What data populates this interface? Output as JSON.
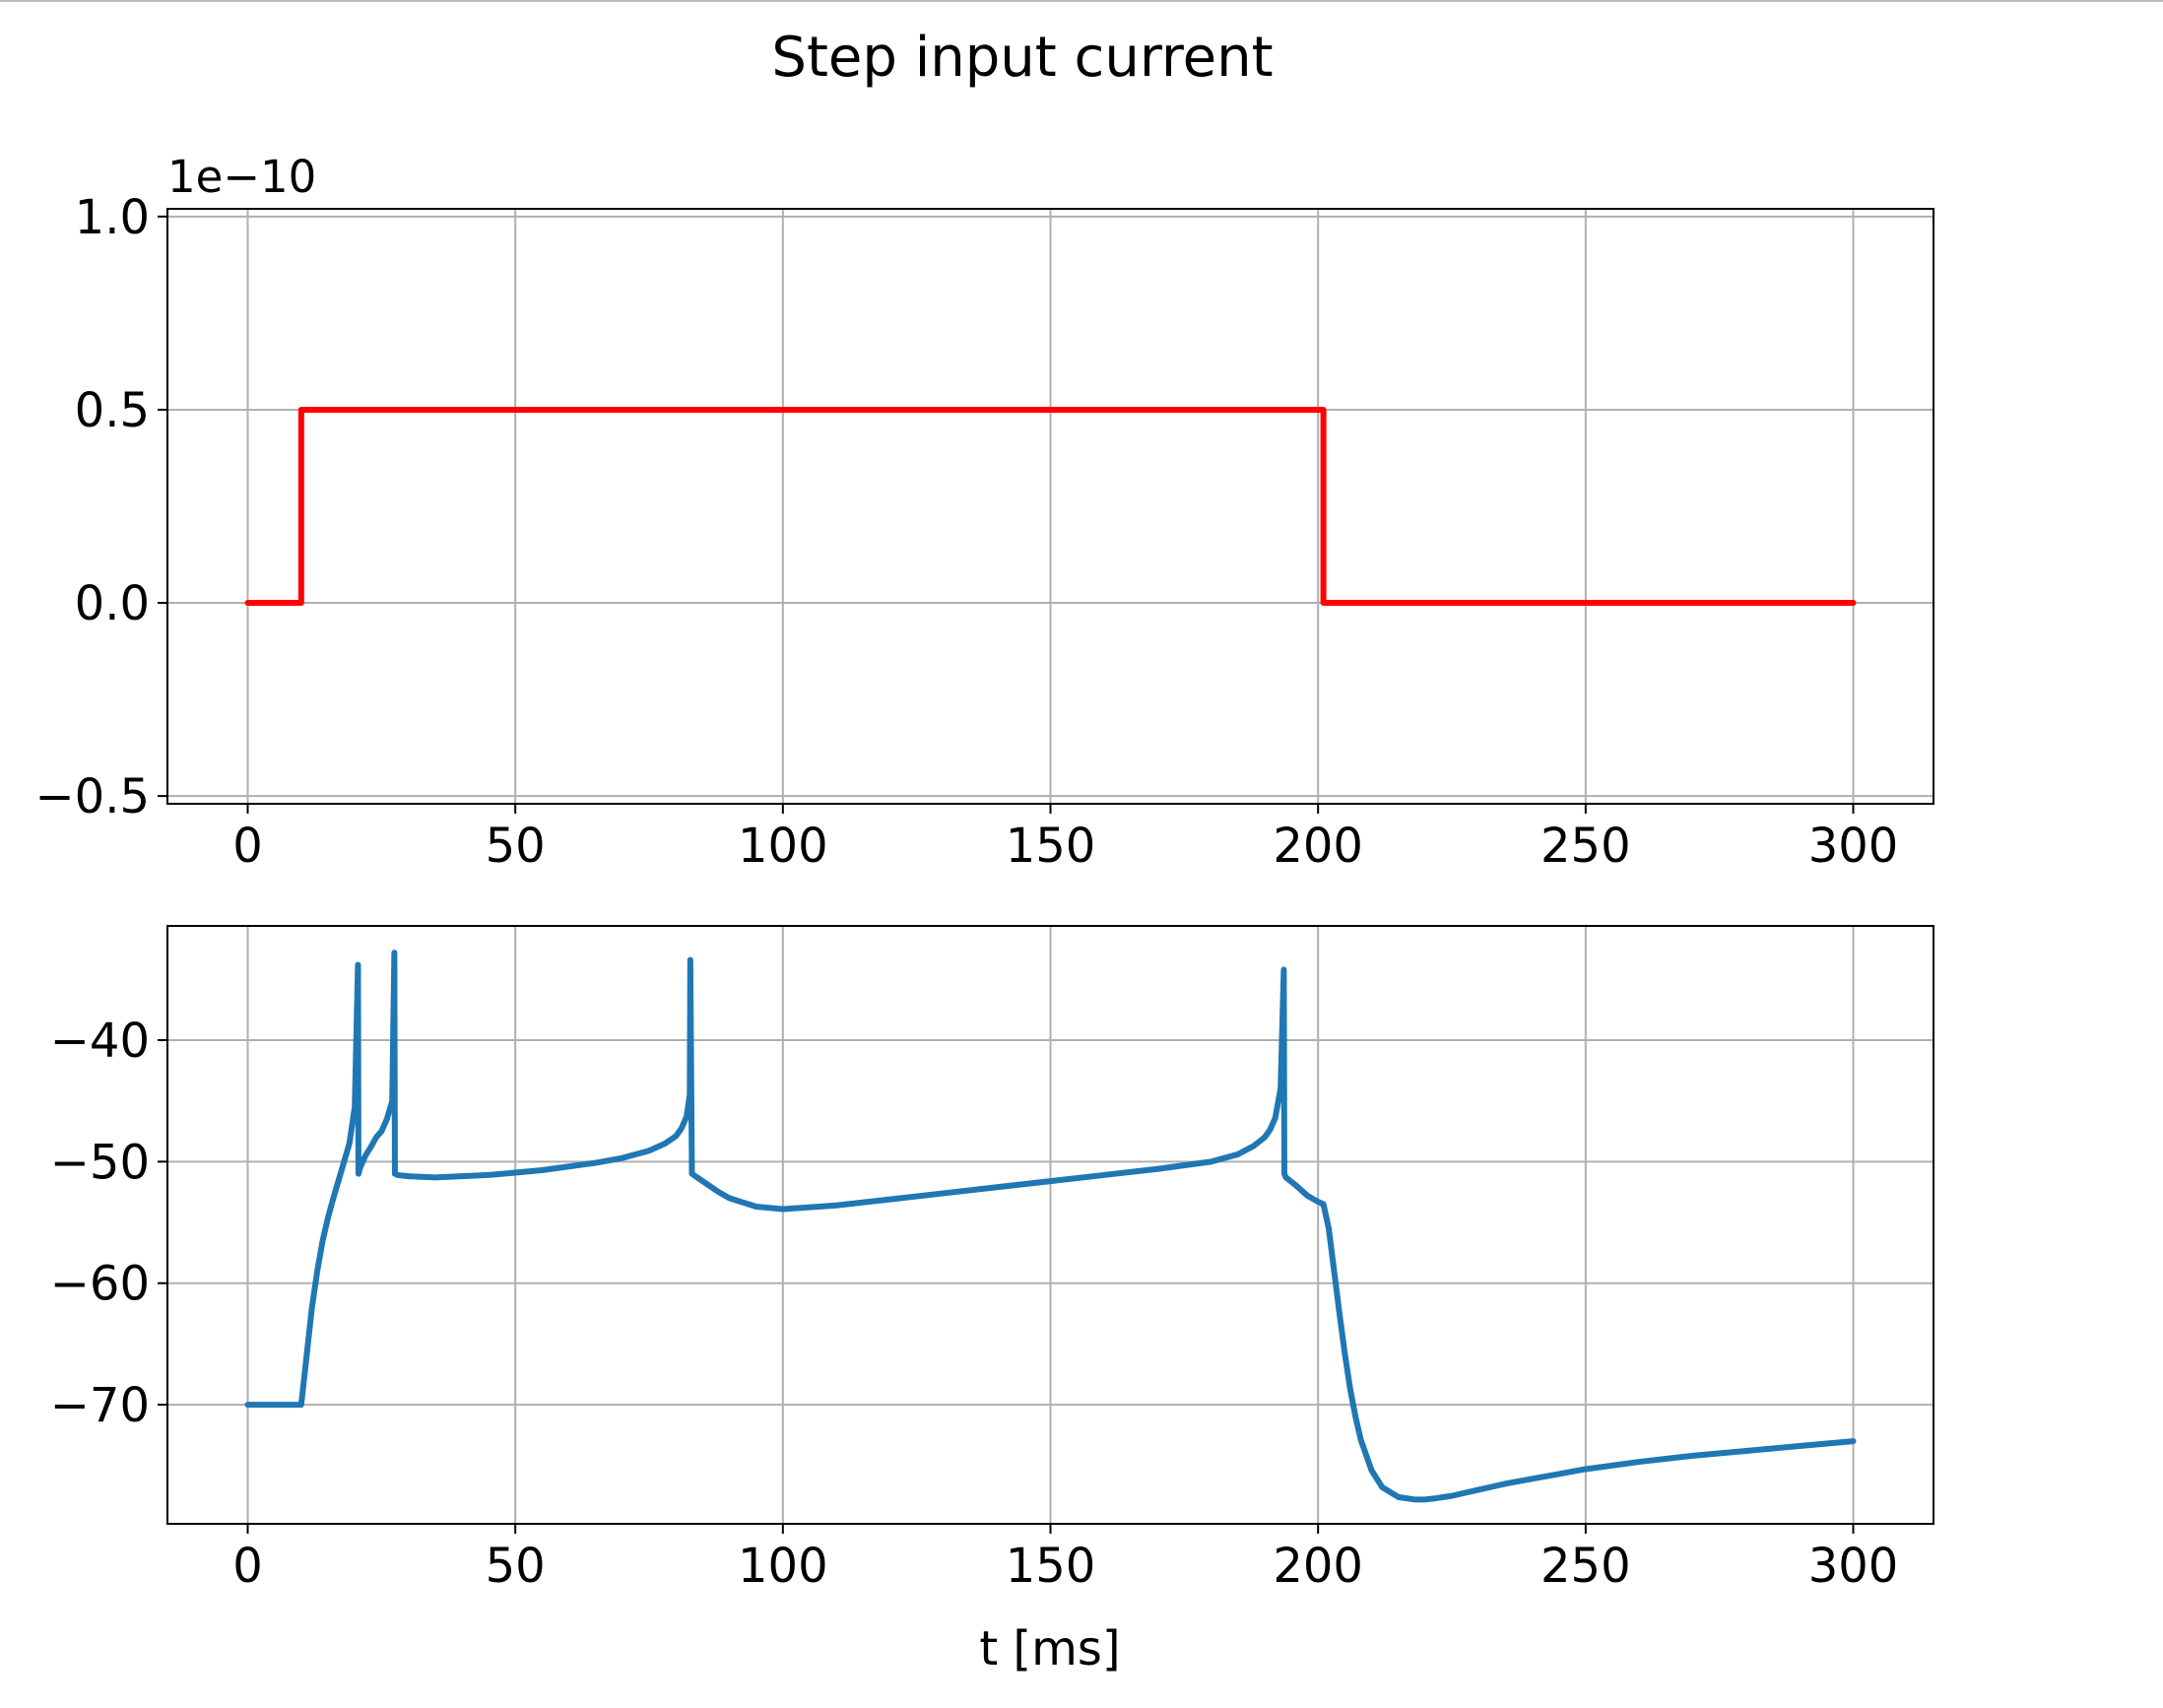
{
  "figure": {
    "title": "Step input current"
  },
  "colors": {
    "current": "#ff0000",
    "voltage": "#1f77b4",
    "grid": "#b0b0b0",
    "axes": "#000000",
    "background": "#ffffff"
  },
  "chart_data": [
    {
      "type": "line",
      "title": "Step input current",
      "xlabel": "",
      "ylabel": "",
      "offset_text": "1e−10",
      "xlim": [
        -15,
        315
      ],
      "ylim": [
        -0.52,
        1.02
      ],
      "x_ticks": [
        0,
        50,
        100,
        150,
        200,
        250,
        300
      ],
      "x_tick_labels": [
        "0",
        "50",
        "100",
        "150",
        "200",
        "250",
        "300"
      ],
      "y_ticks": [
        -0.5,
        0.0,
        0.5,
        1.0
      ],
      "y_tick_labels": [
        "−0.5",
        "0.0",
        "0.5",
        "1.0"
      ],
      "grid": true,
      "series": [
        {
          "color": "#ff0000",
          "x": [
            0,
            10,
            10,
            201,
            201,
            300
          ],
          "y": [
            0,
            0,
            0.5,
            0.5,
            0,
            0
          ]
        }
      ]
    },
    {
      "type": "line",
      "xlabel": "t [ms]",
      "ylabel": "",
      "xlim": [
        -15,
        315
      ],
      "ylim": [
        -79.8,
        -30.6
      ],
      "x_ticks": [
        0,
        50,
        100,
        150,
        200,
        250,
        300
      ],
      "x_tick_labels": [
        "0",
        "50",
        "100",
        "150",
        "200",
        "250",
        "300"
      ],
      "y_ticks": [
        -70,
        -60,
        -50,
        -40
      ],
      "y_tick_labels": [
        "−70",
        "−60",
        "−50",
        "−40"
      ],
      "grid": true,
      "series": [
        {
          "color": "#1f77b4",
          "x": [
            0,
            10,
            11,
            12,
            13,
            14,
            15,
            16,
            17,
            18,
            19,
            20,
            20.6,
            20.7,
            21,
            22,
            23,
            24,
            25,
            26,
            27,
            27.4,
            27.5,
            28,
            30,
            35,
            40,
            45,
            50,
            55,
            60,
            65,
            70,
            75,
            78,
            80,
            81,
            82,
            82.6,
            82.7,
            83,
            85,
            88,
            90,
            95,
            100,
            110,
            120,
            130,
            140,
            150,
            160,
            170,
            180,
            185,
            188,
            190,
            191,
            192,
            193,
            193.6,
            193.7,
            194,
            196,
            198,
            200,
            201,
            202,
            203,
            204,
            205,
            206,
            207,
            208,
            210,
            212,
            215,
            218,
            220,
            222,
            225,
            230,
            235,
            240,
            245,
            250,
            260,
            270,
            280,
            290,
            300
          ],
          "y": [
            -70,
            -70,
            -66,
            -62,
            -59,
            -56.5,
            -54.6,
            -53,
            -51.5,
            -50,
            -48.5,
            -45.5,
            -33.8,
            -51,
            -50.5,
            -49.5,
            -48.8,
            -48,
            -47.5,
            -46.5,
            -45,
            -32.8,
            -51,
            -51.1,
            -51.2,
            -51.3,
            -51.2,
            -51.1,
            -50.9,
            -50.7,
            -50.4,
            -50.1,
            -49.7,
            -49.1,
            -48.5,
            -47.9,
            -47.3,
            -46.3,
            -44.5,
            -33.4,
            -51,
            -51.6,
            -52.5,
            -53,
            -53.7,
            -53.9,
            -53.6,
            -53.1,
            -52.6,
            -52.1,
            -51.6,
            -51.1,
            -50.6,
            -50,
            -49.4,
            -48.7,
            -48,
            -47.4,
            -46.4,
            -44,
            -34.2,
            -51,
            -51.3,
            -52,
            -52.8,
            -53.3,
            -53.5,
            -55.5,
            -59,
            -62.5,
            -65.8,
            -68.7,
            -71,
            -72.9,
            -75.4,
            -76.8,
            -77.6,
            -77.8,
            -77.8,
            -77.7,
            -77.5,
            -77,
            -76.5,
            -76.1,
            -75.7,
            -75.3,
            -74.7,
            -74.2,
            -73.8,
            -73.4,
            -73
          ]
        }
      ]
    }
  ]
}
